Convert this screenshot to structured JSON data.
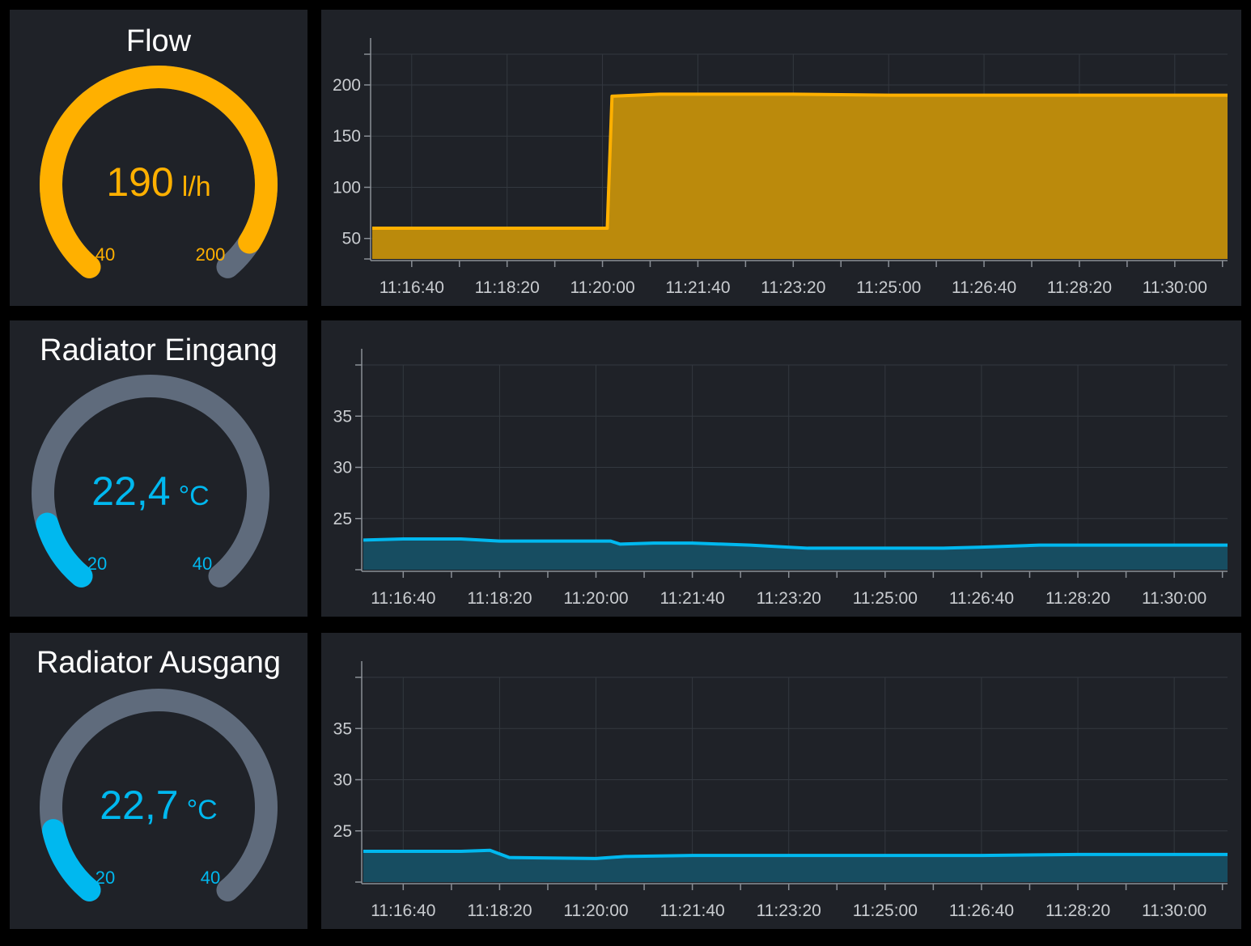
{
  "colors": {
    "panel_bg": "#1f2228",
    "track": "#5f6b7c",
    "flow_accent": "#ffb000",
    "flow_fill": "#bb8a0c",
    "temp_accent": "#00b8ef",
    "temp_fill": "#174d61",
    "grid": "#33383f",
    "axis": "#8a8f96",
    "tick_text": "#c9ccd0",
    "title_text": "#ffffff"
  },
  "x_tick_labels": [
    "11:16:40",
    "11:18:20",
    "11:20:00",
    "11:21:40",
    "11:23:20",
    "11:25:00",
    "11:26:40",
    "11:28:20",
    "11:30:00"
  ],
  "panels": [
    {
      "title": "Flow",
      "gauge": {
        "value": 190,
        "value_text": "190",
        "unit": "l/h",
        "min": 40,
        "max": 200,
        "min_label": "40",
        "max_label": "200",
        "color": "flow"
      }
    },
    {
      "title": "Radiator Eingang",
      "gauge": {
        "value": 22.4,
        "value_text": "22,4",
        "unit": "°C",
        "min": 20,
        "max": 40,
        "min_label": "20",
        "max_label": "40",
        "color": "temp"
      }
    },
    {
      "title": "Radiator Ausgang",
      "gauge": {
        "value": 22.7,
        "value_text": "22,7",
        "unit": "°C",
        "min": 20,
        "max": 40,
        "min_label": "20",
        "max_label": "40",
        "color": "temp"
      }
    }
  ],
  "chart_data": [
    {
      "type": "area",
      "series_name": "",
      "x_unit": "time",
      "x": [
        "11:15:45",
        "11:16:40",
        "11:18:20",
        "11:20:00",
        "11:20:05",
        "11:20:10",
        "11:21:00",
        "11:21:40",
        "11:23:20",
        "11:25:00",
        "11:26:40",
        "11:28:20",
        "11:30:00",
        "11:31:00"
      ],
      "y": [
        60,
        60,
        60,
        60,
        60,
        189,
        191,
        191,
        191,
        190,
        190,
        190,
        190,
        190
      ],
      "yticks": [
        50,
        100,
        150,
        200
      ],
      "ylim": [
        30,
        230
      ],
      "grid": true
    },
    {
      "type": "area",
      "series_name": "",
      "x_unit": "time",
      "x": [
        "11:15:45",
        "11:16:40",
        "11:17:40",
        "11:18:20",
        "11:20:00",
        "11:20:15",
        "11:20:25",
        "11:21:00",
        "11:21:40",
        "11:22:40",
        "11:23:40",
        "11:25:00",
        "11:26:00",
        "11:26:40",
        "11:27:40",
        "11:28:20",
        "11:30:00",
        "11:31:00"
      ],
      "y": [
        22.9,
        23.0,
        23.0,
        22.8,
        22.8,
        22.8,
        22.5,
        22.6,
        22.6,
        22.4,
        22.1,
        22.1,
        22.1,
        22.2,
        22.4,
        22.4,
        22.4,
        22.4
      ],
      "yticks": [
        25,
        30,
        35
      ],
      "ylim": [
        20,
        40
      ],
      "grid": true
    },
    {
      "type": "area",
      "series_name": "",
      "x_unit": "time",
      "x": [
        "11:15:45",
        "11:16:40",
        "11:17:40",
        "11:18:10",
        "11:18:30",
        "11:20:00",
        "11:20:30",
        "11:21:40",
        "11:23:20",
        "11:25:00",
        "11:26:40",
        "11:28:20",
        "11:30:00",
        "11:31:00"
      ],
      "y": [
        23.0,
        23.0,
        23.0,
        23.1,
        22.4,
        22.3,
        22.5,
        22.6,
        22.6,
        22.6,
        22.6,
        22.7,
        22.7,
        22.7
      ],
      "yticks": [
        25,
        30,
        35
      ],
      "ylim": [
        20,
        40
      ],
      "grid": true
    }
  ]
}
